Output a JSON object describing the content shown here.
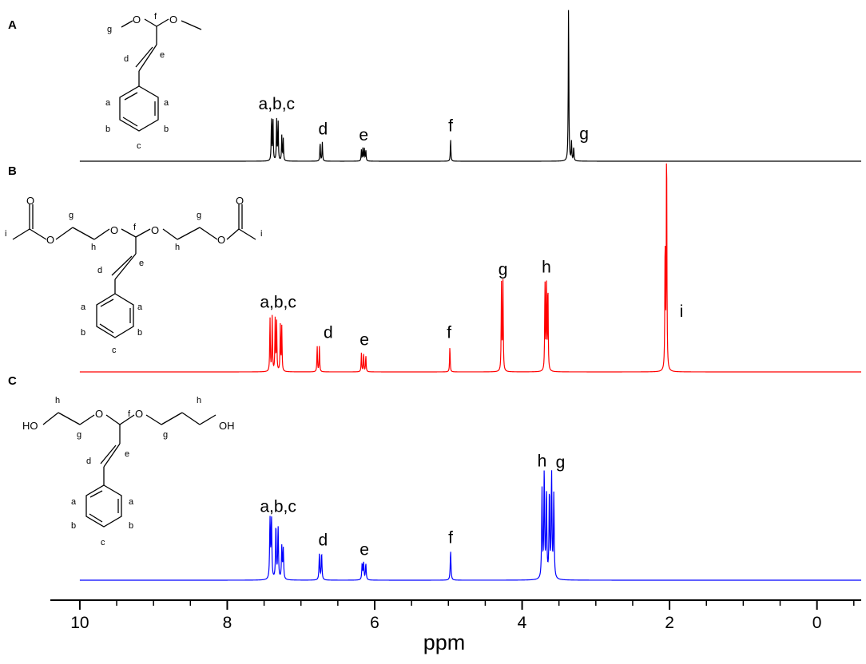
{
  "chart_data": {
    "type": "line",
    "xlabel": "ppm",
    "x_reversed": true,
    "xlim": [
      10.4,
      -0.6
    ],
    "xticks": [
      {
        "value": 10,
        "label": "10"
      },
      {
        "value": 8,
        "label": "8"
      },
      {
        "value": 6,
        "label": "6"
      },
      {
        "value": 4,
        "label": "4"
      },
      {
        "value": 2,
        "label": "2"
      },
      {
        "value": 0,
        "label": "0"
      }
    ],
    "series": [
      {
        "panel": "A",
        "color": "#000000",
        "peaks": [
          {
            "ppm": 7.4,
            "height": 0.27
          },
          {
            "ppm": 7.38,
            "height": 0.28
          },
          {
            "ppm": 7.33,
            "height": 0.26
          },
          {
            "ppm": 7.31,
            "height": 0.25
          },
          {
            "ppm": 7.26,
            "height": 0.16
          },
          {
            "ppm": 7.24,
            "height": 0.14
          },
          {
            "ppm": 6.74,
            "height": 0.12
          },
          {
            "ppm": 6.71,
            "height": 0.12
          },
          {
            "ppm": 6.18,
            "height": 0.07
          },
          {
            "ppm": 6.16,
            "height": 0.08
          },
          {
            "ppm": 6.14,
            "height": 0.08
          },
          {
            "ppm": 6.12,
            "height": 0.07
          },
          {
            "ppm": 4.97,
            "height": 0.14
          },
          {
            "ppm": 3.37,
            "height": 1.0
          },
          {
            "ppm": 3.33,
            "height": 0.12
          },
          {
            "ppm": 3.3,
            "height": 0.09
          }
        ],
        "labels": [
          {
            "text": "a,b,c",
            "ppm": 7.33
          },
          {
            "text": "d",
            "ppm": 6.7
          },
          {
            "text": "e",
            "ppm": 6.15
          },
          {
            "text": "f",
            "ppm": 4.97
          },
          {
            "text": "g",
            "ppm": 3.16
          }
        ],
        "molecule_labels": {
          "methyl": "g",
          "acetal_ch": "f",
          "vinyl_1": "d",
          "vinyl_2": "e",
          "ortho": "a",
          "meta": "b",
          "para": "c"
        }
      },
      {
        "panel": "B",
        "color": "#ff0000",
        "peaks": [
          {
            "ppm": 7.42,
            "height": 0.23
          },
          {
            "ppm": 7.39,
            "height": 0.24
          },
          {
            "ppm": 7.35,
            "height": 0.22
          },
          {
            "ppm": 7.33,
            "height": 0.21
          },
          {
            "ppm": 7.28,
            "height": 0.2
          },
          {
            "ppm": 7.26,
            "height": 0.19
          },
          {
            "ppm": 6.78,
            "height": 0.11
          },
          {
            "ppm": 6.75,
            "height": 0.11
          },
          {
            "ppm": 6.18,
            "height": 0.08
          },
          {
            "ppm": 6.15,
            "height": 0.08
          },
          {
            "ppm": 6.12,
            "height": 0.07
          },
          {
            "ppm": 4.98,
            "height": 0.11
          },
          {
            "ppm": 4.28,
            "height": 0.37
          },
          {
            "ppm": 4.26,
            "height": 0.38
          },
          {
            "ppm": 3.69,
            "height": 0.38
          },
          {
            "ppm": 3.67,
            "height": 0.39
          },
          {
            "ppm": 3.65,
            "height": 0.37
          },
          {
            "ppm": 2.06,
            "height": 0.56
          },
          {
            "ppm": 2.04,
            "height": 1.0
          }
        ],
        "labels": [
          {
            "text": "a,b,c",
            "ppm": 7.31
          },
          {
            "text": "d",
            "ppm": 6.63
          },
          {
            "text": "e",
            "ppm": 6.14
          },
          {
            "text": "f",
            "ppm": 4.99
          },
          {
            "text": "g",
            "ppm": 4.26
          },
          {
            "text": "h",
            "ppm": 3.67
          },
          {
            "text": "i",
            "ppm": 1.84
          }
        ],
        "molecule_labels": {
          "acetyl_methyl": "i",
          "ch2_o_acyl": "g",
          "ch2_o_acetal": "h",
          "acetal_ch": "f",
          "vinyl_1": "d",
          "vinyl_2": "e",
          "ortho": "a",
          "meta": "b",
          "para": "c"
        }
      },
      {
        "panel": "C",
        "color": "#0000ff",
        "peaks": [
          {
            "ppm": 7.42,
            "height": 0.55
          },
          {
            "ppm": 7.4,
            "height": 0.56
          },
          {
            "ppm": 7.34,
            "height": 0.5
          },
          {
            "ppm": 7.31,
            "height": 0.48
          },
          {
            "ppm": 7.26,
            "height": 0.3
          },
          {
            "ppm": 7.24,
            "height": 0.28
          },
          {
            "ppm": 6.75,
            "height": 0.24
          },
          {
            "ppm": 6.72,
            "height": 0.25
          },
          {
            "ppm": 6.17,
            "height": 0.15
          },
          {
            "ppm": 6.15,
            "height": 0.16
          },
          {
            "ppm": 6.12,
            "height": 0.15
          },
          {
            "ppm": 4.97,
            "height": 0.27
          },
          {
            "ppm": 3.73,
            "height": 0.82
          },
          {
            "ppm": 3.7,
            "height": 0.98
          },
          {
            "ppm": 3.67,
            "height": 0.8
          },
          {
            "ppm": 3.63,
            "height": 0.8
          },
          {
            "ppm": 3.6,
            "height": 0.97
          },
          {
            "ppm": 3.57,
            "height": 0.78
          }
        ],
        "labels": [
          {
            "text": "a,b,c",
            "ppm": 7.31
          },
          {
            "text": "d",
            "ppm": 6.7
          },
          {
            "text": "e",
            "ppm": 6.14
          },
          {
            "text": "f",
            "ppm": 4.97
          },
          {
            "text": "h",
            "ppm": 3.73
          },
          {
            "text": "g",
            "ppm": 3.48
          }
        ],
        "molecule_labels": {
          "hydroxyl_left": "HO",
          "hydroxyl_right": "OH",
          "ch2_oh": "h",
          "ch2_o_acetal": "g",
          "acetal_ch": "f",
          "vinyl_1": "d",
          "vinyl_2": "e",
          "ortho": "a",
          "meta": "b",
          "para": "c"
        }
      }
    ]
  }
}
